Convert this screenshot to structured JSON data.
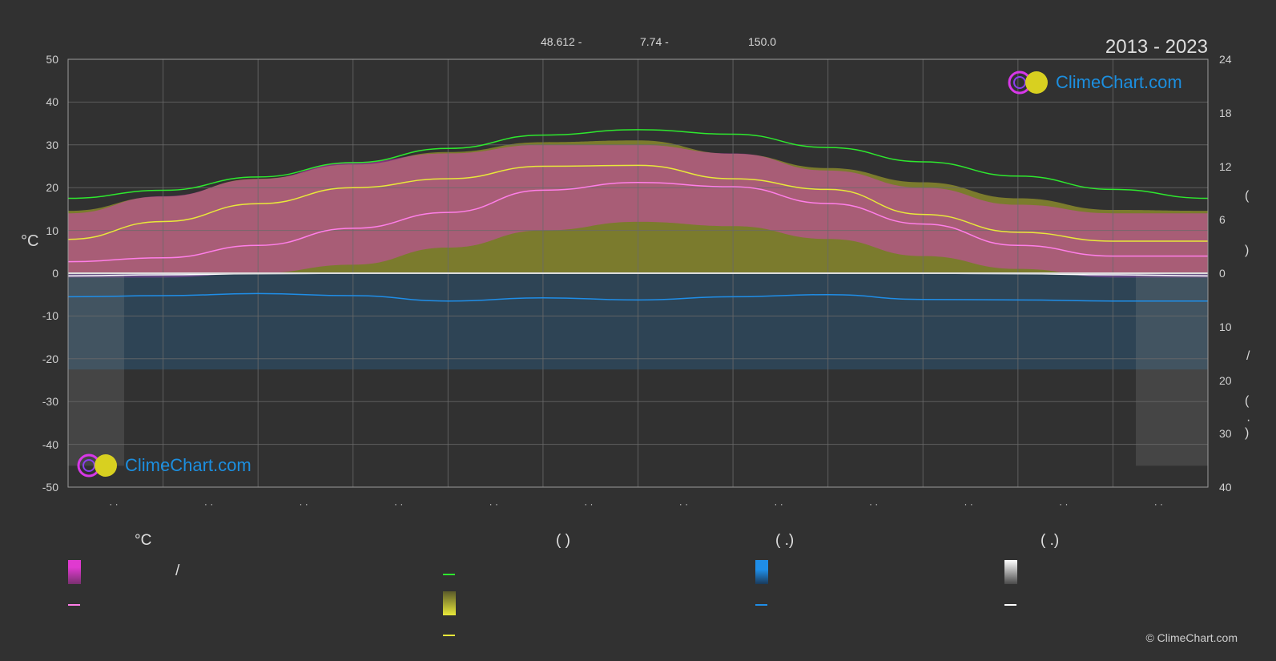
{
  "header": {
    "coords": [
      "48.612 -",
      "7.74 -",
      "150.0"
    ],
    "year_range": "2013 - 2023"
  },
  "logo": {
    "text": "ClimeChart.com"
  },
  "copyright": "© ClimeChart.com",
  "colors": {
    "background": "#313131",
    "grid": "#6a6a6a",
    "temp_band": "#e03ad0",
    "sunshine_band": "#b8b82a",
    "daylight_line": "#2ee82e",
    "sunshine_line": "#e8e83a",
    "temp_mean_line": "#ff7ee8",
    "rain_band": "#2a6a9a",
    "rain_line": "#1f8ee8",
    "snow_band": "#8c8c8c",
    "snow_line": "#ffffff"
  },
  "chart_data": {
    "type": "area",
    "x_ticks": [
      "· ·",
      "· ·",
      "· ·",
      "· ·",
      "· ·",
      "· ·",
      "· ·",
      "· ·",
      "· ·",
      "· ·",
      "· ·",
      "· ·"
    ],
    "y_left": {
      "label": "°C",
      "ticks": [
        50,
        40,
        30,
        20,
        10,
        0,
        -10,
        -20,
        -30,
        -40,
        -50
      ],
      "ylim": [
        -50,
        50
      ]
    },
    "y_right_upper": {
      "ticks": [
        24,
        18,
        12,
        6,
        0
      ],
      "ylim": [
        0,
        24
      ],
      "labels": [
        "(",
        ")"
      ]
    },
    "y_right_lower": {
      "ticks": [
        0,
        10,
        20,
        30,
        40
      ],
      "ylim": [
        0,
        40
      ],
      "labels": [
        "/",
        "(",
        "·",
        ")"
      ]
    },
    "grid": true,
    "series": [
      {
        "key": "daylight",
        "axis": "right_upper",
        "x": [
          0,
          1,
          2,
          3,
          4,
          5,
          6,
          7,
          8,
          9,
          10,
          11,
          12
        ],
        "values": [
          8.4,
          9.3,
          10.8,
          12.4,
          14.0,
          15.5,
          16.1,
          15.6,
          14.1,
          12.5,
          10.9,
          9.4,
          8.4
        ]
      },
      {
        "key": "sunshine",
        "axis": "right_upper",
        "x": [
          0,
          1,
          2,
          3,
          4,
          5,
          6,
          7,
          8,
          9,
          10,
          11,
          12
        ],
        "values": [
          3.8,
          5.8,
          7.8,
          9.6,
          10.6,
          12.0,
          12.1,
          10.6,
          9.4,
          6.6,
          4.6,
          3.6,
          3.6
        ]
      },
      {
        "key": "sunshine_band_top",
        "axis": "right_upper",
        "x": [
          0,
          1,
          2,
          3,
          4,
          5,
          6,
          7,
          8,
          9,
          10,
          11,
          12
        ],
        "values": [
          7.0,
          8.6,
          10.6,
          12.2,
          13.6,
          14.7,
          14.9,
          13.4,
          11.8,
          10.2,
          8.4,
          7.1,
          7.0
        ]
      },
      {
        "key": "temp_mean",
        "axis": "left",
        "x": [
          0,
          1,
          2,
          3,
          4,
          5,
          6,
          7,
          8,
          9,
          10,
          11,
          12
        ],
        "values": [
          2.7,
          3.6,
          6.5,
          10.5,
          14.2,
          19.4,
          21.2,
          20.2,
          16.3,
          11.5,
          6.5,
          4.0,
          4.0
        ]
      },
      {
        "key": "temp_max",
        "axis": "left",
        "x": [
          0,
          1,
          2,
          3,
          4,
          5,
          6,
          7,
          8,
          9,
          10,
          11,
          12
        ],
        "values": [
          14,
          18,
          22,
          26,
          28,
          30,
          30,
          28,
          24,
          20,
          16,
          14,
          14
        ]
      },
      {
        "key": "temp_min",
        "axis": "left",
        "x": [
          0,
          1,
          2,
          3,
          4,
          5,
          6,
          7,
          8,
          9,
          10,
          11,
          12
        ],
        "values": [
          -1,
          -1,
          0,
          2,
          6,
          10,
          12,
          11,
          8,
          4,
          1,
          -1,
          -1
        ]
      },
      {
        "key": "rain",
        "axis": "right_lower",
        "x": [
          0,
          1,
          2,
          3,
          4,
          5,
          6,
          7,
          8,
          9,
          10,
          11,
          12
        ],
        "values": [
          4.4,
          4.2,
          3.8,
          4.2,
          5.2,
          4.6,
          5.0,
          4.4,
          4.0,
          4.9,
          5.0,
          5.2,
          5.2
        ]
      },
      {
        "key": "snow",
        "axis": "right_lower",
        "x": [
          0,
          1,
          2,
          3,
          4,
          5,
          6,
          7,
          8,
          9,
          10,
          11,
          12
        ],
        "values": [
          0.5,
          0.3,
          0.1,
          0,
          0,
          0,
          0,
          0,
          0,
          0,
          0.1,
          0.3,
          0.5
        ]
      }
    ]
  },
  "legend": {
    "headings": [
      "°C",
      "(          )",
      "(   .)",
      "(   .)"
    ],
    "items": [
      "/"
    ]
  }
}
